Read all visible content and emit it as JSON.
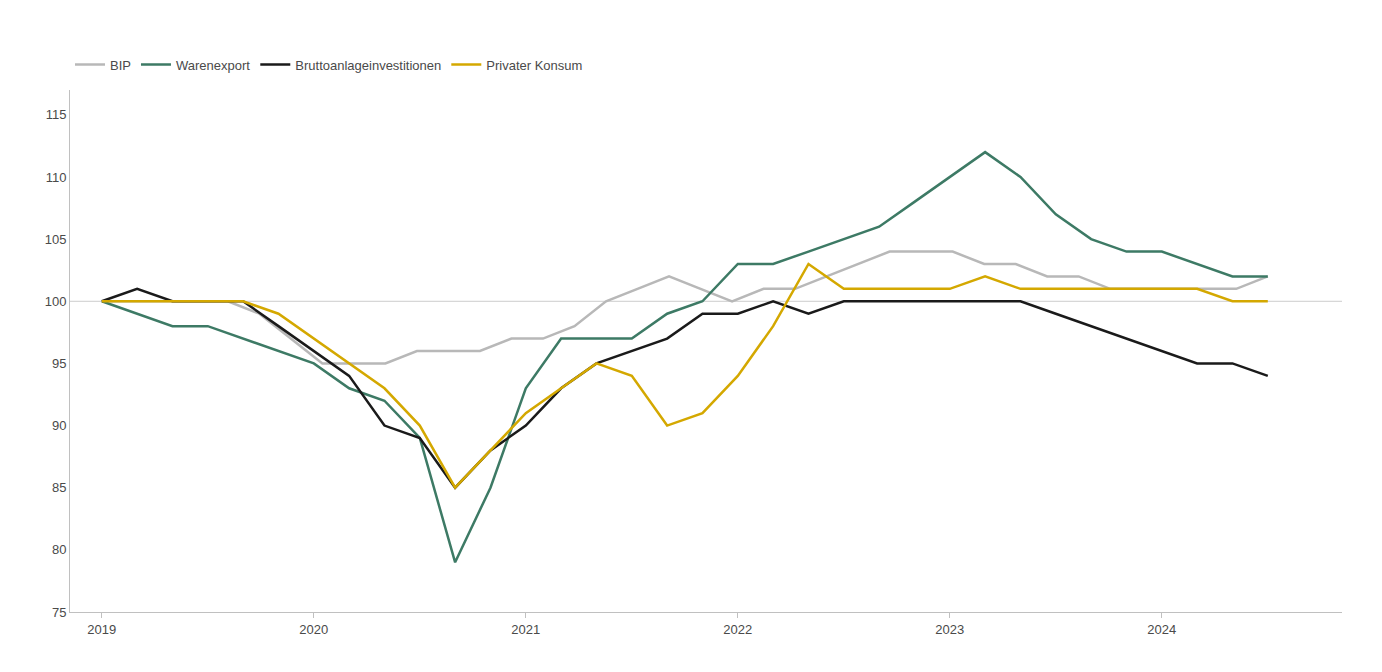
{
  "chart_data": {
    "type": "line",
    "xlim": [
      2018.85,
      2024.85
    ],
    "xticks": [
      2019,
      2020,
      2021,
      2022,
      2023,
      2024
    ],
    "ylim": [
      75,
      117
    ],
    "yticks": [
      75,
      80,
      85,
      90,
      95,
      100,
      105,
      110,
      115
    ],
    "grid": false,
    "legend": "upper left",
    "reference_line": {
      "y": 100,
      "color": "#cccccc"
    },
    "series": [
      {
        "name": "BIP",
        "color": "#b8b8b8",
        "x": [
          2019,
          2019.148649,
          2019.297297,
          2019.445946,
          2019.594595,
          2019.743243,
          2019.891892,
          2020.040541,
          2020.189189,
          2020.337838,
          2020.486486,
          2020.635135,
          2020.783784,
          2020.932432,
          2021.081081,
          2021.22973,
          2021.378378,
          2021.527027,
          2021.675676,
          2021.824324,
          2021.972973,
          2022.121622,
          2022.27027,
          2022.418919,
          2022.567568,
          2022.716216,
          2022.864865,
          2023.013514,
          2023.162162,
          2023.310811,
          2023.459459,
          2023.608108,
          2023.756757,
          2023.905405,
          2024.054054,
          2024.202703,
          2024.351351,
          2024.5
        ],
        "values": [
          100,
          100,
          100,
          100,
          100,
          99,
          97,
          95,
          95,
          95,
          96,
          96,
          96,
          97,
          97,
          98,
          100,
          101,
          102,
          101,
          100,
          101,
          101,
          102,
          103,
          104,
          104,
          104,
          103,
          103,
          102,
          102,
          101,
          101,
          101,
          101,
          101,
          102
        ]
      },
      {
        "name": "Warenexport",
        "color": "#3d7a65",
        "x": [
          2019,
          2019.166667,
          2019.333333,
          2019.5,
          2019.666667,
          2019.833333,
          2020,
          2020.166667,
          2020.333333,
          2020.5,
          2020.666667,
          2020.833333,
          2021,
          2021.166667,
          2021.333333,
          2021.5,
          2021.666667,
          2021.833333,
          2022,
          2022.166667,
          2022.333333,
          2022.5,
          2022.666667,
          2022.833333,
          2023,
          2023.166667,
          2023.333333,
          2023.5,
          2023.666667,
          2023.833333,
          2024,
          2024.166667,
          2024.333333,
          2024.5
        ],
        "values": [
          100,
          99,
          98,
          98,
          97,
          96,
          95,
          93,
          92,
          89,
          79,
          85,
          93,
          97,
          97,
          97,
          99,
          100,
          103,
          103,
          104,
          105,
          106,
          108,
          110,
          112,
          110,
          107,
          105,
          104,
          104,
          103,
          102,
          102
        ]
      },
      {
        "name": "Bruttoanlageinvestitionen",
        "color": "#1a1a1a",
        "x": [
          2019,
          2019.166667,
          2019.333333,
          2019.5,
          2019.666667,
          2019.833333,
          2020,
          2020.166667,
          2020.333333,
          2020.5,
          2020.666667,
          2020.833333,
          2021,
          2021.166667,
          2021.333333,
          2021.5,
          2021.666667,
          2021.833333,
          2022,
          2022.166667,
          2022.333333,
          2022.5,
          2022.666667,
          2022.833333,
          2023,
          2023.166667,
          2023.333333,
          2023.5,
          2023.666667,
          2023.833333,
          2024,
          2024.166667,
          2024.333333,
          2024.5
        ],
        "values": [
          100,
          101,
          100,
          100,
          100,
          98,
          96,
          94,
          90,
          89,
          85,
          88,
          90,
          93,
          95,
          96,
          97,
          99,
          99,
          100,
          99,
          100,
          100,
          100,
          100,
          100,
          100,
          99,
          98,
          97,
          96,
          95,
          95,
          94
        ]
      },
      {
        "name": "Privater Konsum",
        "color": "#d4a800",
        "x": [
          2019,
          2019.166667,
          2019.333333,
          2019.5,
          2019.666667,
          2019.833333,
          2020,
          2020.166667,
          2020.333333,
          2020.5,
          2020.666667,
          2020.833333,
          2021,
          2021.166667,
          2021.333333,
          2021.5,
          2021.666667,
          2021.833333,
          2022,
          2022.166667,
          2022.333333,
          2022.5,
          2022.666667,
          2022.833333,
          2023,
          2023.166667,
          2023.333333,
          2023.5,
          2023.666667,
          2023.833333,
          2024,
          2024.166667,
          2024.333333,
          2024.5
        ],
        "values": [
          100,
          100,
          100,
          100,
          100,
          99,
          97,
          95,
          93,
          90,
          85,
          88,
          91,
          93,
          95,
          94,
          90,
          91,
          94,
          98,
          103,
          101,
          101,
          101,
          101,
          102,
          101,
          101,
          101,
          101,
          101,
          101,
          100,
          100
        ]
      }
    ]
  }
}
